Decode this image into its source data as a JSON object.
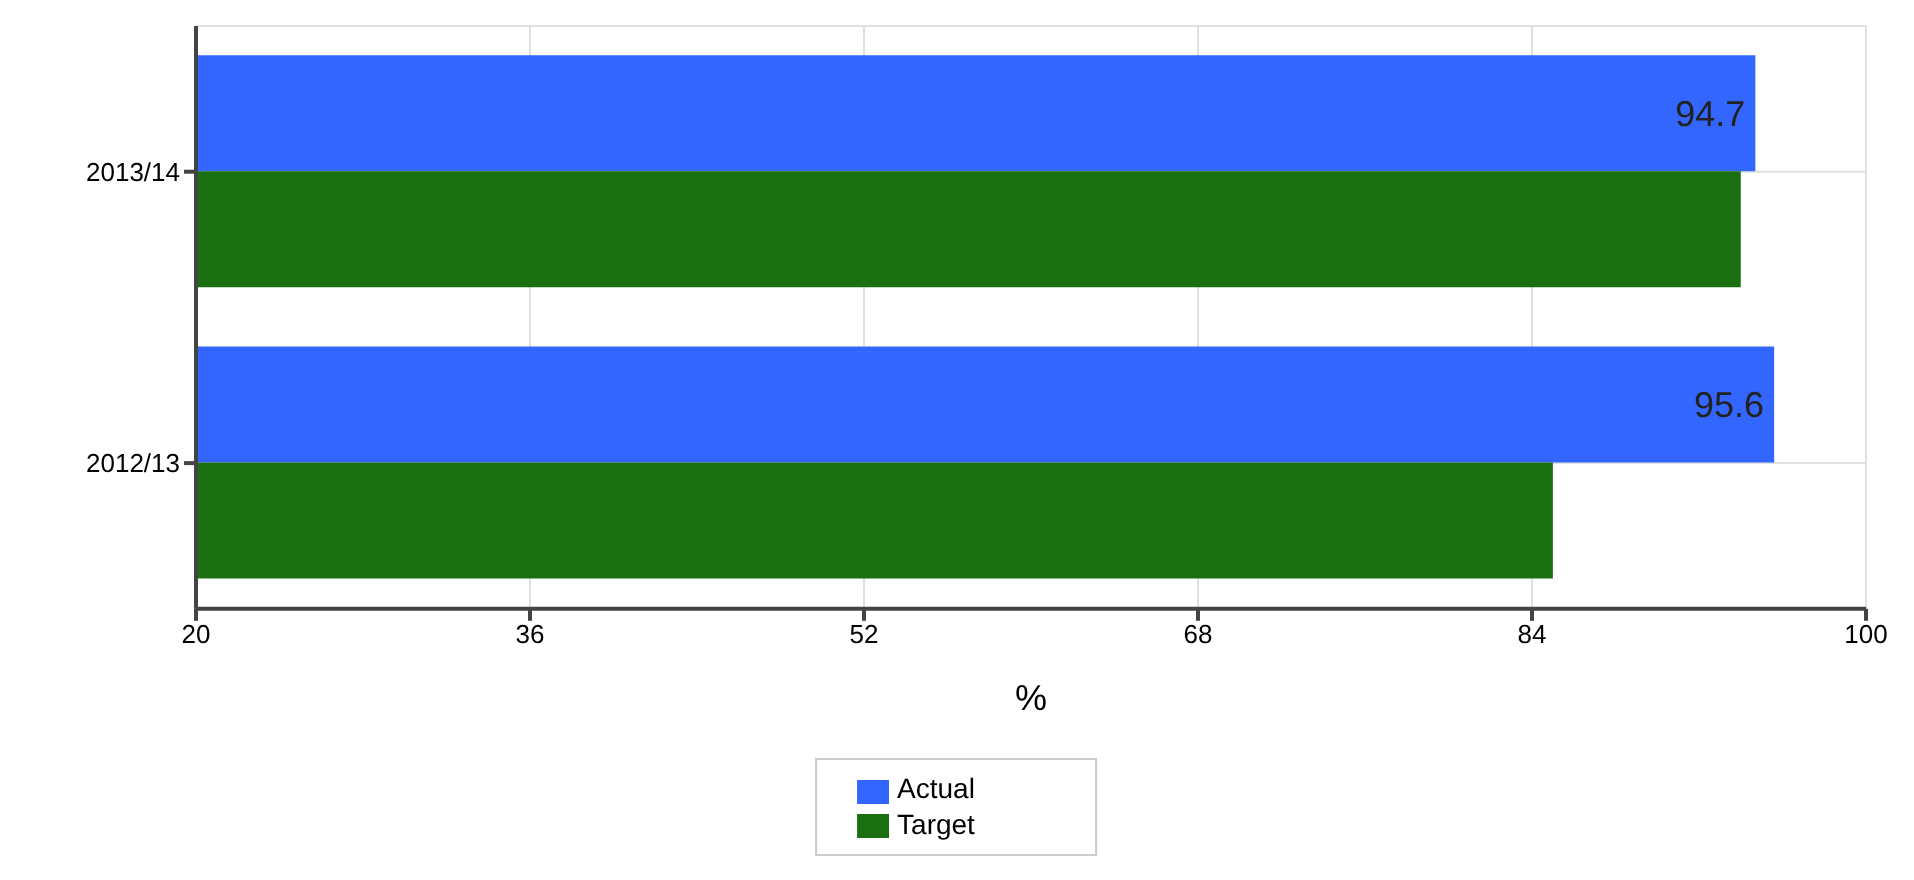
{
  "chart_data": {
    "type": "bar",
    "orientation": "horizontal",
    "xlabel": "%",
    "categories": [
      "2013/14",
      "2012/13"
    ],
    "series": [
      {
        "name": "Actual",
        "color": "#3366ff",
        "values": [
          94.7,
          95.6
        ],
        "value_labels": [
          "94.7",
          "95.6"
        ]
      },
      {
        "name": "Target",
        "color": "#1a7010",
        "values": [
          94,
          85
        ]
      }
    ],
    "xlim": [
      20,
      100
    ],
    "xticks": [
      20,
      36,
      52,
      68,
      84,
      100
    ],
    "grid": true,
    "legend": "bottom"
  }
}
